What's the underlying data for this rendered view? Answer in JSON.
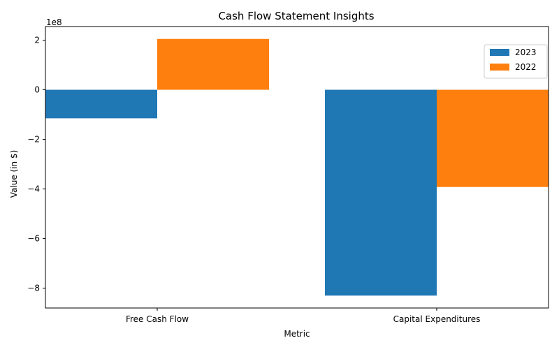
{
  "chart_data": {
    "type": "bar",
    "title": "Cash Flow Statement Insights",
    "xlabel": "Metric",
    "ylabel": "Value (in $)",
    "y_offset_label": "1e8",
    "categories": [
      "Free Cash Flow",
      "Capital Expenditures"
    ],
    "series": [
      {
        "name": "2023",
        "color": "#1f77b4",
        "values": [
          -115000000,
          -830000000
        ]
      },
      {
        "name": "2022",
        "color": "#ff7f0e",
        "values": [
          205000000,
          -392000000
        ]
      }
    ],
    "ylim": [
      -880000000,
      255000000
    ],
    "yticks": [
      -800000000,
      -600000000,
      -400000000,
      -200000000,
      0,
      200000000
    ],
    "ytick_labels": [
      "−8",
      "−6",
      "−4",
      "−2",
      "0",
      "2"
    ],
    "legend_position": "top-right",
    "grid": false
  }
}
